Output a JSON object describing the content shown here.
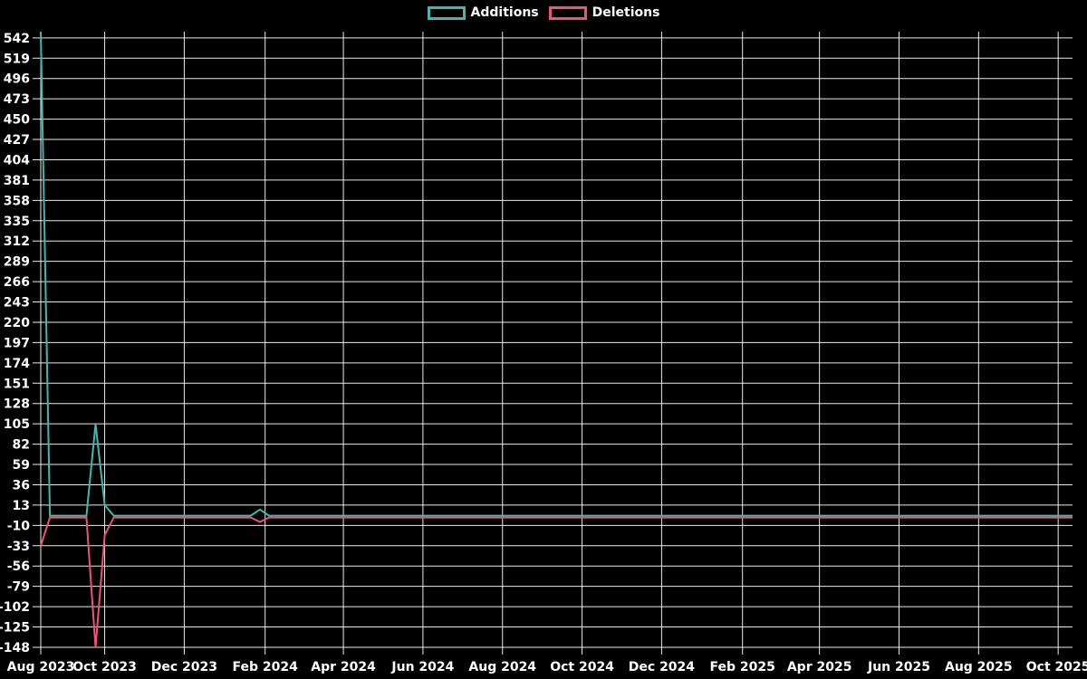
{
  "page": {
    "background_color": "#000000"
  },
  "legend": {
    "position": "top-center",
    "items": [
      {
        "label": "Additions",
        "color": "#41b7ae"
      },
      {
        "label": "Deletions",
        "color": "#ee5378"
      }
    ]
  },
  "chart_data": {
    "type": "line",
    "title": "",
    "x_axis": {
      "unit": "week",
      "start_week": "2023-08-13",
      "weeks": 114,
      "tick_labels": [
        "Aug 2023",
        "Oct 2023",
        "Dec 2023",
        "Feb 2024",
        "Apr 2024",
        "Jun 2024",
        "Aug 2024",
        "Oct 2024",
        "Dec 2024",
        "Feb 2025",
        "Apr 2025",
        "Jun 2025",
        "Aug 2025",
        "Oct 2025"
      ]
    },
    "y_axis": {
      "range": [
        -148,
        549
      ],
      "tick_step": 23,
      "tick_labels": [
        542,
        519,
        496,
        473,
        450,
        427,
        404,
        381,
        358,
        335,
        312,
        289,
        266,
        243,
        220,
        197,
        174,
        151,
        128,
        105,
        82,
        59,
        36,
        13,
        -10,
        -33,
        -56,
        -79,
        -102,
        -125,
        -148
      ]
    },
    "grid": {
      "show": true,
      "color": "#ffffff"
    },
    "series": [
      {
        "name": "Additions",
        "color": "#41b7ae",
        "baseline": 1,
        "notable_weeks": {
          "0": 549,
          "6": 105,
          "7": 13,
          "24": 8
        }
      },
      {
        "name": "Deletions",
        "color": "#ee5378",
        "baseline": -1,
        "notable_weeks": {
          "0": -33,
          "6": -148,
          "7": -21,
          "24": -6
        }
      }
    ]
  }
}
